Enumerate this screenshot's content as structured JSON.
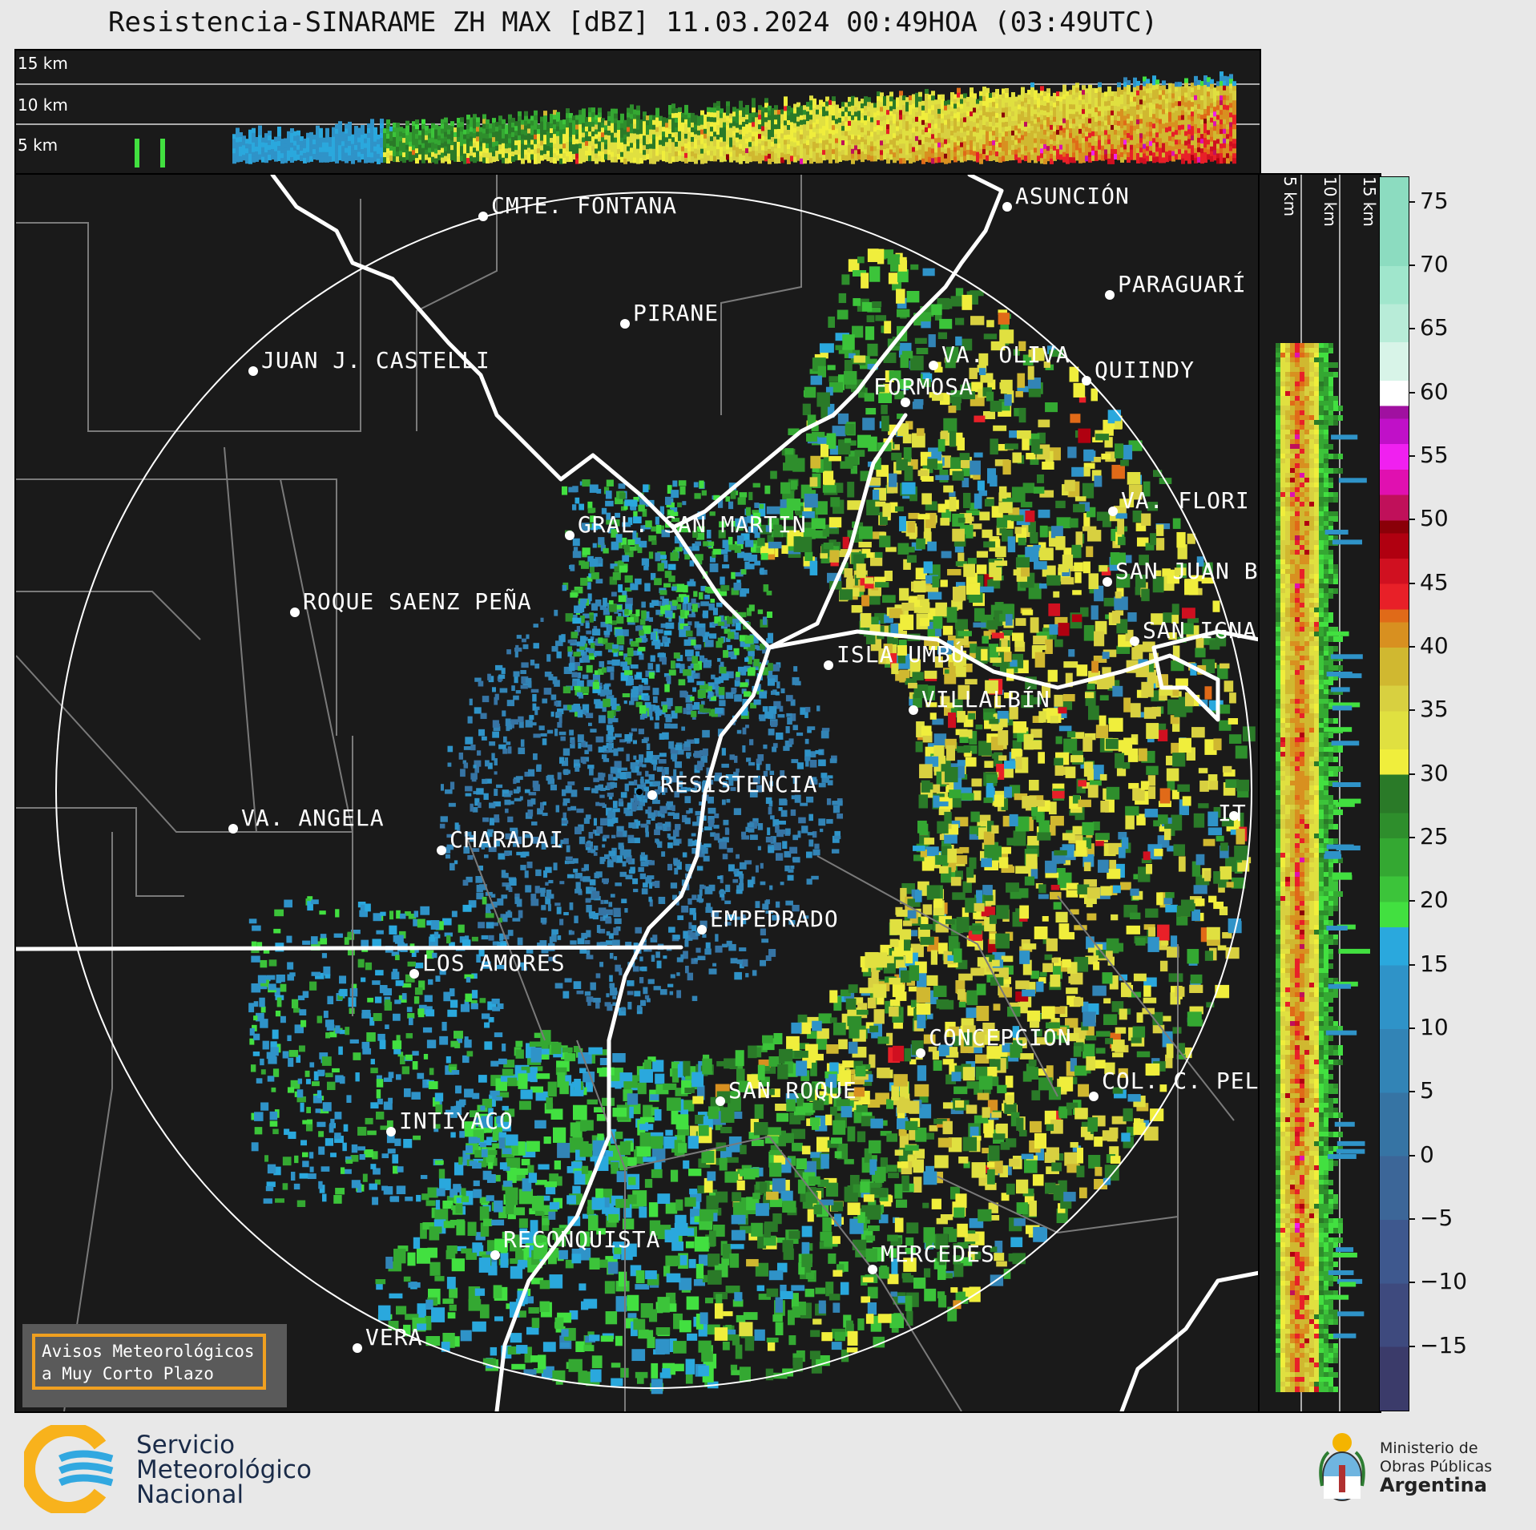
{
  "title": "Resistencia-SINARAME ZH MAX [dBZ] 11.03.2024 00:49HOA (03:49UTC)",
  "top_panel": {
    "altitudes": [
      "15 km",
      "10 km",
      "5 km"
    ]
  },
  "side_panel": {
    "altitudes": [
      "5 km",
      "10 km",
      "15 km"
    ]
  },
  "cities": [
    {
      "name": "CMTE. FONTANA"
    },
    {
      "name": "ASUNCIÓN"
    },
    {
      "name": "PARAGUARÍ"
    },
    {
      "name": "PIRANE"
    },
    {
      "name": "JUAN J. CASTELLI"
    },
    {
      "name": "VA. OLIVA"
    },
    {
      "name": "QUIINDY"
    },
    {
      "name": "FORMOSA"
    },
    {
      "name": "VA. FLORI"
    },
    {
      "name": "GRAL. SAN MARTIN"
    },
    {
      "name": "SAN JUAN B"
    },
    {
      "name": "ROQUE SAENZ PEÑA"
    },
    {
      "name": "SAN IGNA"
    },
    {
      "name": "ISLA UMBÚ"
    },
    {
      "name": "VILLALBÍN"
    },
    {
      "name": "RESISTENCIA"
    },
    {
      "name": "VA. ANGELA"
    },
    {
      "name": "CHARADAI"
    },
    {
      "name": "IT"
    },
    {
      "name": "EMPEDRADO"
    },
    {
      "name": "LOS AMORES"
    },
    {
      "name": "CONCEPCION"
    },
    {
      "name": "SAN ROQUE"
    },
    {
      "name": "COL. C. PEL"
    },
    {
      "name": "INTIYACO"
    },
    {
      "name": "RECONQUISTA"
    },
    {
      "name": "MERCEDES"
    },
    {
      "name": "VERA"
    }
  ],
  "colorbar": {
    "unit": "dBZ",
    "ticks": [
      "75",
      "70",
      "65",
      "60",
      "55",
      "50",
      "45",
      "40",
      "35",
      "30",
      "25",
      "20",
      "15",
      "10",
      "5",
      "0",
      "−5",
      "−10",
      "−15"
    ],
    "range": [
      -20,
      77
    ]
  },
  "avisos": {
    "line1": "Avisos Meteorológicos",
    "line2": "a Muy Corto Plazo"
  },
  "footer": {
    "smn_line1": "Servicio",
    "smn_line2": "Meteorológico",
    "smn_line3": "Nacional",
    "ministry_line1": "Ministerio de",
    "ministry_line2": "Obras Públicas",
    "ministry_line3": "Argentina"
  }
}
